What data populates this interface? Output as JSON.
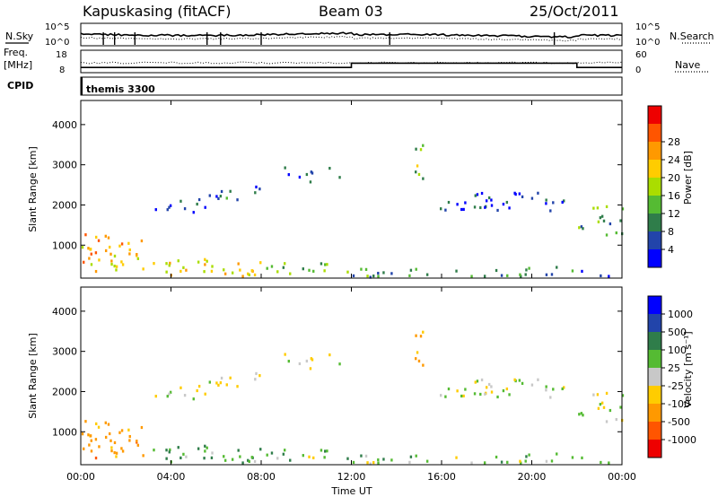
{
  "header": {
    "station": "Kapuskasing (fitACF)",
    "beam": "Beam 03",
    "date": "25/Oct/2011"
  },
  "summary_panels": {
    "nsky_label": "N.Sky",
    "nsearch_label": "N.Search",
    "freq_label": "Freq.",
    "freq_unit": "[MHz]",
    "nave_label": "Nave",
    "cpid_label": "CPID",
    "cpid_value": "themis 3300",
    "noise_ticks": [
      "10^5",
      "10^0"
    ],
    "freq_ticks": [
      "18",
      "8"
    ],
    "nave_ticks": [
      "60",
      "0"
    ]
  },
  "time_axis": {
    "label": "Time UT",
    "ticks": [
      "00:00",
      "04:00",
      "08:00",
      "12:00",
      "16:00",
      "20:00",
      "00:00"
    ]
  },
  "range_axis": {
    "label": "Slant Range [km]",
    "ticks": [
      "1000",
      "2000",
      "3000",
      "4000"
    ]
  },
  "power_scale": {
    "label": "Power [dB]",
    "ticks": [
      "4",
      "8",
      "12",
      "16",
      "20",
      "24",
      "28"
    ],
    "colors": [
      "#0000ff",
      "#2244aa",
      "#2f7d4a",
      "#55bb33",
      "#aadd00",
      "#ffcc00",
      "#ff9900",
      "#ff5500",
      "#ee0000"
    ]
  },
  "velocity_scale": {
    "label": "Velocity [m s⁻¹]",
    "ticks": [
      "1000",
      "500",
      "100",
      "25",
      "-25",
      "-100",
      "-500",
      "-1000"
    ],
    "colors": [
      "#0000ff",
      "#2244aa",
      "#2f7d4a",
      "#55bb33",
      "#c8c8c8",
      "#ffcc00",
      "#ff9900",
      "#ff5500",
      "#ee0000"
    ]
  },
  "chart_data": {
    "type": "heatmap",
    "x_range_hours": [
      0,
      24
    ],
    "y_range_km": [
      180,
      4600
    ],
    "freq_steps": [
      {
        "t": [
          0,
          12
        ],
        "mhz": 10
      },
      {
        "t": [
          12,
          22
        ],
        "mhz": 12
      },
      {
        "t": [
          22,
          24
        ],
        "mhz": 10
      }
    ],
    "bands": [
      {
        "t0": 0.0,
        "t1": 2.8,
        "r0": 300,
        "r1": 1300,
        "p": 24,
        "v": -300,
        "d": 0.8
      },
      {
        "t0": 2.8,
        "t1": 8.0,
        "r0": 200,
        "r1": 650,
        "p": 22,
        "v": 100,
        "d": 0.75
      },
      {
        "t0": 8.0,
        "t1": 12.0,
        "r0": 200,
        "r1": 550,
        "p": 14,
        "v": 60,
        "d": 0.6
      },
      {
        "t0": 12.0,
        "t1": 22.0,
        "r0": 200,
        "r1": 450,
        "p": 11,
        "v": 30,
        "d": 0.7
      },
      {
        "t0": 22.0,
        "t1": 24.0,
        "r0": 200,
        "r1": 400,
        "p": 7,
        "v": 20,
        "d": 0.4
      },
      {
        "t0": 2.5,
        "t1": 6.5,
        "r0": 1800,
        "r1": 2200,
        "p": 7,
        "v": 0,
        "d": 0.45
      },
      {
        "t0": 5.5,
        "t1": 8.0,
        "r0": 2100,
        "r1": 2700,
        "p": 6,
        "v": 0,
        "d": 0.35
      },
      {
        "t0": 9.0,
        "t1": 11.5,
        "r0": 2500,
        "r1": 3100,
        "p": 6,
        "v": 10,
        "d": 0.35
      },
      {
        "t0": 14.8,
        "t1": 15.5,
        "r0": 2500,
        "r1": 3500,
        "p": 15,
        "v": -200,
        "d": 0.6
      },
      {
        "t0": 15.5,
        "t1": 22.0,
        "r0": 1850,
        "r1": 2300,
        "p": 6,
        "v": 0,
        "d": 0.7
      },
      {
        "t0": 22.0,
        "t1": 24.0,
        "r0": 1200,
        "r1": 2000,
        "p": 12,
        "v": 0,
        "d": 0.6
      }
    ]
  }
}
